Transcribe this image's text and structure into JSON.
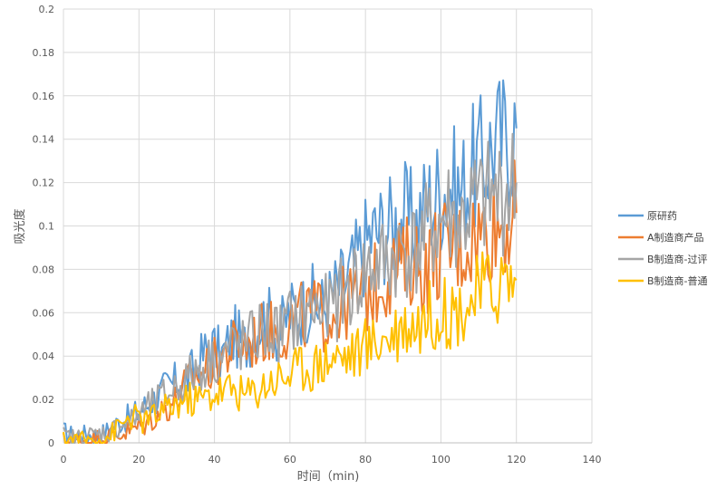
{
  "chart_data": {
    "type": "line",
    "title": "",
    "xlabel": "时间（min)",
    "ylabel": "吸光度",
    "xlim": [
      0,
      140
    ],
    "ylim": [
      0,
      0.2
    ],
    "xticks": [
      "0",
      "20",
      "40",
      "60",
      "80",
      "100",
      "120",
      "140"
    ],
    "yticks": [
      "0",
      "0.02",
      "0.04",
      "0.06",
      "0.08",
      "0.1",
      "0.12",
      "0.14",
      "0.16",
      "0.18",
      "0.2"
    ],
    "grid": true,
    "legend_position": "right",
    "series": [
      {
        "name": "原研药",
        "color": "#5B9BD5",
        "x": [
          0,
          3,
          6,
          9,
          12,
          15,
          18,
          21,
          24,
          27,
          30,
          33,
          36,
          39,
          42,
          45,
          48,
          51,
          54,
          57,
          60,
          63,
          66,
          69,
          72,
          75,
          78,
          81,
          84,
          87,
          90,
          93,
          96,
          99,
          102,
          105,
          108,
          111,
          114,
          117,
          120
        ],
        "y": [
          0.005,
          0.003,
          0.004,
          0.003,
          0.006,
          0.01,
          0.012,
          0.016,
          0.02,
          0.025,
          0.028,
          0.03,
          0.038,
          0.045,
          0.04,
          0.05,
          0.045,
          0.055,
          0.058,
          0.05,
          0.06,
          0.062,
          0.065,
          0.062,
          0.07,
          0.075,
          0.085,
          0.095,
          0.098,
          0.1,
          0.105,
          0.1,
          0.11,
          0.115,
          0.12,
          0.115,
          0.125,
          0.13,
          0.138,
          0.14,
          0.145
        ]
      },
      {
        "name": "A制造商产品",
        "color": "#ED7D31",
        "x": [
          0,
          3,
          6,
          9,
          12,
          15,
          18,
          21,
          24,
          27,
          30,
          33,
          36,
          39,
          42,
          45,
          48,
          51,
          54,
          57,
          60,
          63,
          66,
          69,
          72,
          75,
          78,
          81,
          84,
          87,
          90,
          93,
          96,
          99,
          102,
          105,
          108,
          111,
          114,
          117,
          120
        ],
        "y": [
          0.001,
          0.001,
          0.001,
          0.002,
          0.003,
          0.004,
          0.006,
          0.008,
          0.012,
          0.016,
          0.02,
          0.028,
          0.032,
          0.035,
          0.04,
          0.044,
          0.045,
          0.048,
          0.052,
          0.05,
          0.055,
          0.058,
          0.06,
          0.058,
          0.06,
          0.065,
          0.066,
          0.07,
          0.075,
          0.08,
          0.082,
          0.085,
          0.08,
          0.088,
          0.09,
          0.09,
          0.095,
          0.098,
          0.1,
          0.102,
          0.106
        ]
      },
      {
        "name": "B制造商-过评",
        "color": "#A5A5A5",
        "x": [
          0,
          3,
          6,
          9,
          12,
          15,
          18,
          21,
          24,
          27,
          30,
          33,
          36,
          39,
          42,
          45,
          48,
          51,
          54,
          57,
          60,
          63,
          66,
          69,
          72,
          75,
          78,
          81,
          84,
          87,
          90,
          93,
          96,
          99,
          102,
          105,
          108,
          111,
          114,
          117,
          120
        ],
        "y": [
          0.003,
          0.002,
          0.003,
          0.004,
          0.005,
          0.008,
          0.01,
          0.014,
          0.018,
          0.022,
          0.026,
          0.03,
          0.034,
          0.038,
          0.04,
          0.045,
          0.044,
          0.05,
          0.052,
          0.05,
          0.056,
          0.058,
          0.062,
          0.06,
          0.064,
          0.07,
          0.075,
          0.08,
          0.082,
          0.085,
          0.09,
          0.088,
          0.095,
          0.1,
          0.105,
          0.1,
          0.108,
          0.11,
          0.112,
          0.115,
          0.12
        ]
      },
      {
        "name": "B制造商-普通",
        "color": "#FFC000",
        "x": [
          0,
          3,
          6,
          9,
          12,
          15,
          18,
          21,
          24,
          27,
          30,
          33,
          36,
          39,
          42,
          45,
          48,
          51,
          54,
          57,
          60,
          63,
          66,
          69,
          72,
          75,
          78,
          81,
          84,
          87,
          90,
          93,
          96,
          99,
          102,
          105,
          108,
          111,
          114,
          117,
          120
        ],
        "y": [
          0.001,
          0.002,
          0.001,
          0.002,
          0.003,
          0.008,
          0.012,
          0.01,
          0.012,
          0.015,
          0.018,
          0.02,
          0.02,
          0.022,
          0.024,
          0.025,
          0.022,
          0.024,
          0.028,
          0.03,
          0.032,
          0.035,
          0.035,
          0.038,
          0.04,
          0.04,
          0.042,
          0.045,
          0.048,
          0.05,
          0.055,
          0.055,
          0.058,
          0.06,
          0.06,
          0.062,
          0.065,
          0.07,
          0.072,
          0.075,
          0.075
        ]
      }
    ]
  }
}
